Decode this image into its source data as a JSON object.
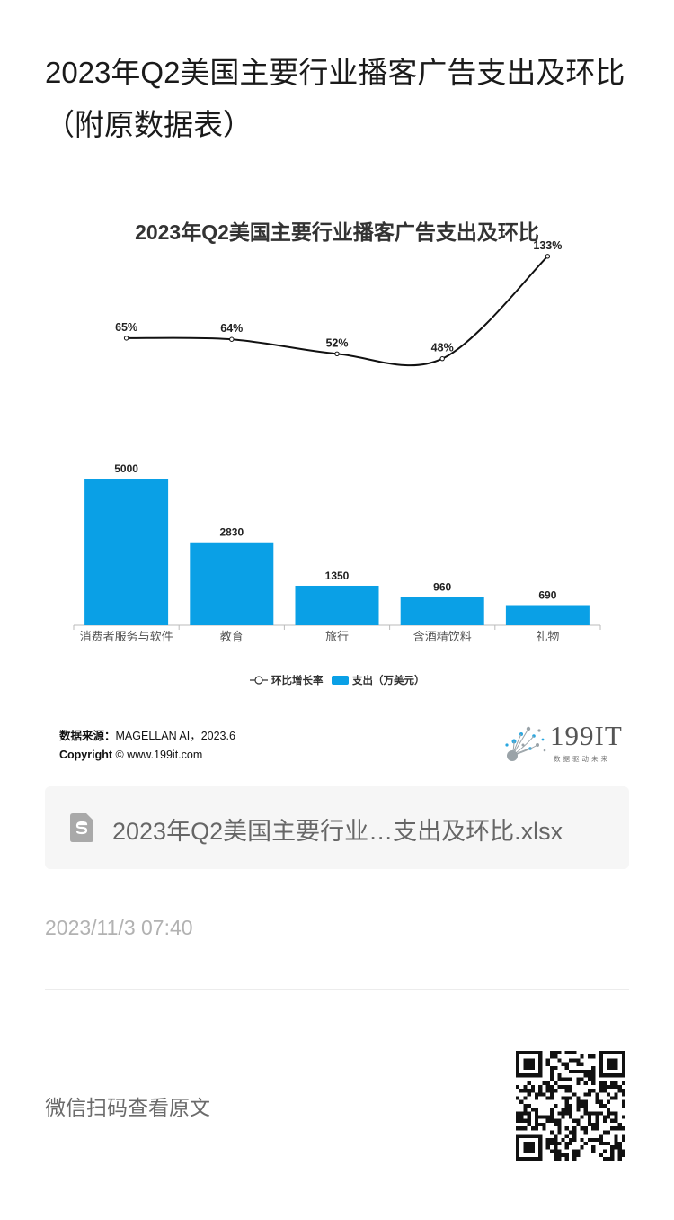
{
  "article": {
    "title": "2023年Q2美国主要行业播客广告支出及环比（附原数据表）",
    "timestamp": "2023/11/3 07:40",
    "qr_hint": "微信扫码查看原文"
  },
  "attachment": {
    "file_name": "2023年Q2美国主要行业…支出及环比.xlsx",
    "icon": "spreadsheet-file-icon"
  },
  "source": {
    "label": "数据来源：",
    "text": "MAGELLAN AI，2023.6",
    "copyright_label": "Copyright",
    "copyright_text": "© www.199it.com"
  },
  "logo": {
    "text": "199IT",
    "tagline": "数据驱动未来"
  },
  "colors": {
    "bar": "#0aa0e6",
    "line": "#111111",
    "axis": "#bbbbbb"
  },
  "chart_data": {
    "type": "bar",
    "title": "2023年Q2美国主要行业播客广告支出及环比",
    "categories": [
      "消费者服务与软件",
      "教育",
      "旅行",
      "含酒精饮料",
      "礼物"
    ],
    "series": [
      {
        "name": "支出（万美元）",
        "type": "bar",
        "values": [
          5000,
          2830,
          1350,
          960,
          690
        ]
      },
      {
        "name": "环比增长率",
        "type": "line",
        "values": [
          65,
          64,
          52,
          48,
          133
        ],
        "labels": [
          "65%",
          "64%",
          "52%",
          "48%",
          "133%"
        ]
      }
    ],
    "legend": {
      "position": "bottom",
      "items": [
        "环比增长率",
        "支出（万美元）"
      ]
    },
    "grid": false
  }
}
